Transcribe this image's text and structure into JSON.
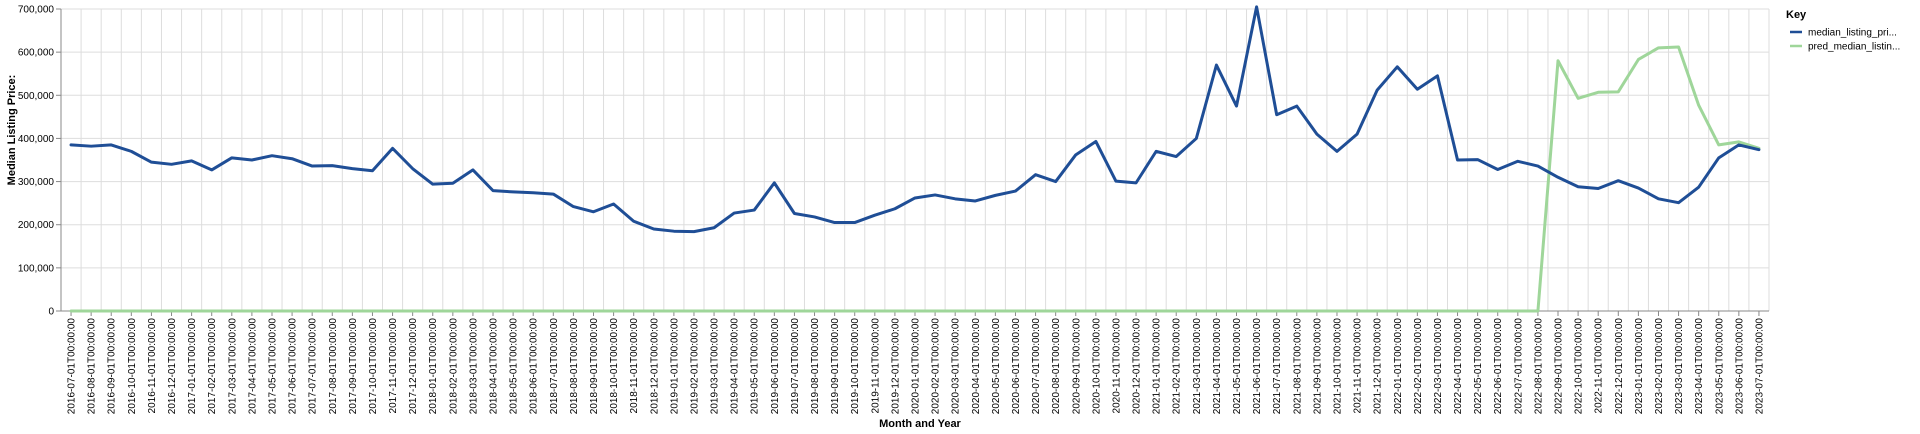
{
  "chart_data": {
    "type": "line",
    "xlabel": "Month and Year",
    "ylabel": "Median Listing Price:",
    "ylim": [
      0,
      700000
    ],
    "yticks": [
      "0",
      "100,000",
      "200,000",
      "300,000",
      "400,000",
      "500,000",
      "600,000",
      "700,000"
    ],
    "grid": true,
    "legend_title": "Key",
    "legend_position": "top-right",
    "x": [
      "2016-07-01T00:00:00",
      "2016-08-01T00:00:00",
      "2016-09-01T00:00:00",
      "2016-10-01T00:00:00",
      "2016-11-01T00:00:00",
      "2016-12-01T00:00:00",
      "2017-01-01T00:00:00",
      "2017-02-01T00:00:00",
      "2017-03-01T00:00:00",
      "2017-04-01T00:00:00",
      "2017-05-01T00:00:00",
      "2017-06-01T00:00:00",
      "2017-07-01T00:00:00",
      "2017-08-01T00:00:00",
      "2017-09-01T00:00:00",
      "2017-10-01T00:00:00",
      "2017-11-01T00:00:00",
      "2017-12-01T00:00:00",
      "2018-01-01T00:00:00",
      "2018-02-01T00:00:00",
      "2018-03-01T00:00:00",
      "2018-04-01T00:00:00",
      "2018-05-01T00:00:00",
      "2018-06-01T00:00:00",
      "2018-07-01T00:00:00",
      "2018-08-01T00:00:00",
      "2018-09-01T00:00:00",
      "2018-10-01T00:00:00",
      "2018-11-01T00:00:00",
      "2018-12-01T00:00:00",
      "2019-01-01T00:00:00",
      "2019-02-01T00:00:00",
      "2019-03-01T00:00:00",
      "2019-04-01T00:00:00",
      "2019-05-01T00:00:00",
      "2019-06-01T00:00:00",
      "2019-07-01T00:00:00",
      "2019-08-01T00:00:00",
      "2019-09-01T00:00:00",
      "2019-10-01T00:00:00",
      "2019-11-01T00:00:00",
      "2019-12-01T00:00:00",
      "2020-01-01T00:00:00",
      "2020-02-01T00:00:00",
      "2020-03-01T00:00:00",
      "2020-04-01T00:00:00",
      "2020-05-01T00:00:00",
      "2020-06-01T00:00:00",
      "2020-07-01T00:00:00",
      "2020-08-01T00:00:00",
      "2020-09-01T00:00:00",
      "2020-10-01T00:00:00",
      "2020-11-01T00:00:00",
      "2020-12-01T00:00:00",
      "2021-01-01T00:00:00",
      "2021-02-01T00:00:00",
      "2021-03-01T00:00:00",
      "2021-04-01T00:00:00",
      "2021-05-01T00:00:00",
      "2021-06-01T00:00:00",
      "2021-07-01T00:00:00",
      "2021-08-01T00:00:00",
      "2021-09-01T00:00:00",
      "2021-10-01T00:00:00",
      "2021-11-01T00:00:00",
      "2021-12-01T00:00:00",
      "2022-01-01T00:00:00",
      "2022-02-01T00:00:00",
      "2022-03-01T00:00:00",
      "2022-04-01T00:00:00",
      "2022-05-01T00:00:00",
      "2022-06-01T00:00:00",
      "2022-07-01T00:00:00",
      "2022-08-01T00:00:00",
      "2022-09-01T00:00:00",
      "2022-10-01T00:00:00",
      "2022-11-01T00:00:00",
      "2022-12-01T00:00:00",
      "2023-01-01T00:00:00",
      "2023-02-01T00:00:00",
      "2023-03-01T00:00:00",
      "2023-04-01T00:00:00",
      "2023-05-01T00:00:00",
      "2023-06-01T00:00:00",
      "2023-07-01T00:00:00"
    ],
    "series": [
      {
        "name": "median_listing_pri...",
        "color": "#1f4e96",
        "values": [
          385000,
          382000,
          385000,
          370000,
          345000,
          340000,
          348000,
          327000,
          355000,
          350000,
          360000,
          353000,
          336000,
          337000,
          330000,
          325000,
          377000,
          330000,
          294000,
          296000,
          327000,
          279000,
          276000,
          274000,
          271000,
          242000,
          230000,
          248000,
          208000,
          190000,
          185000,
          184000,
          193000,
          227000,
          234000,
          297000,
          226000,
          218000,
          205000,
          205000,
          222000,
          237000,
          262000,
          269000,
          260000,
          255000,
          268000,
          278000,
          316000,
          300000,
          362000,
          393000,
          301000,
          297000,
          370000,
          358000,
          400000,
          570000,
          475000,
          705000,
          455000,
          475000,
          410000,
          370000,
          410000,
          512000,
          566000,
          514000,
          545000,
          350000,
          351000,
          328000,
          347000,
          336000,
          310000,
          288000,
          284000,
          302000,
          285000,
          260000,
          251000,
          287000,
          355000,
          385000,
          374000
        ]
      },
      {
        "name": "pred_median_listin...",
        "color": "#9fd69a",
        "values": [
          0,
          0,
          0,
          0,
          0,
          0,
          0,
          0,
          0,
          0,
          0,
          0,
          0,
          0,
          0,
          0,
          0,
          0,
          0,
          0,
          0,
          0,
          0,
          0,
          0,
          0,
          0,
          0,
          0,
          0,
          0,
          0,
          0,
          0,
          0,
          0,
          0,
          0,
          0,
          0,
          0,
          0,
          0,
          0,
          0,
          0,
          0,
          0,
          0,
          0,
          0,
          0,
          0,
          0,
          0,
          0,
          0,
          0,
          0,
          0,
          0,
          0,
          0,
          0,
          0,
          0,
          0,
          0,
          0,
          0,
          0,
          0,
          0,
          0,
          580000,
          493000,
          507000,
          508000,
          583000,
          610000,
          612000,
          477000,
          385000,
          392000,
          377000
        ]
      }
    ]
  }
}
